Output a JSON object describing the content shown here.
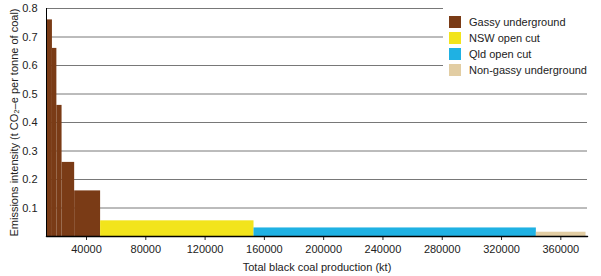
{
  "chart_data": {
    "type": "bar",
    "x_label": "Total black coal production (kt)",
    "y_label": "Emissions intensity (t CO₂–e per tonne of coal)",
    "series": [
      {
        "name": "Gassy underground",
        "color": "#7a3b16",
        "bins": [
          13000,
          17000,
          20000,
          23500,
          32000,
          49500
        ],
        "values": [
          0.76,
          0.66,
          0.46,
          0.26,
          0.16
        ]
      },
      {
        "name": "NSW open cut",
        "color": "#f2e41c",
        "bins": [
          49500,
          153000
        ],
        "values": [
          0.055
        ]
      },
      {
        "name": "Qld open cut",
        "color": "#1fb1e3",
        "bins": [
          153000,
          343500
        ],
        "values": [
          0.03
        ]
      },
      {
        "name": "Non-gassy underground",
        "color": "#e2cda3",
        "bins": [
          343500,
          377000
        ],
        "values": [
          0.015
        ]
      }
    ],
    "xlim": [
      13000,
      378000
    ],
    "xticks": [
      40000,
      80000,
      120000,
      160000,
      200000,
      240000,
      280000,
      320000,
      360000
    ],
    "ylim": [
      0,
      0.8
    ],
    "yticks": [
      0.1,
      0.2,
      0.3,
      0.4,
      0.5,
      0.6,
      0.7,
      0.8
    ],
    "grid": true,
    "legend": "top-right"
  }
}
